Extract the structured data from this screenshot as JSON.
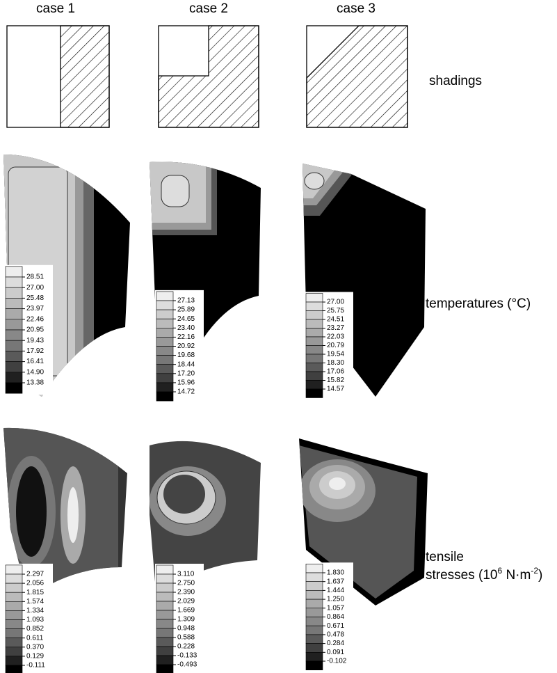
{
  "columns": [
    "case 1",
    "case 2",
    "case 3"
  ],
  "rows": {
    "shadings": "shadings",
    "temperatures": "temperatures (°C)",
    "stresses": {
      "line1": "tensile",
      "line2": [
        "stresses (10",
        "6",
        " N·m",
        "-2",
        ")"
      ]
    }
  },
  "temperature_legends": [
    [
      "28.51",
      "27.00",
      "25.48",
      "23.97",
      "22.46",
      "20.95",
      "19.43",
      "17.92",
      "16.41",
      "14.90",
      "13.38"
    ],
    [
      "27.13",
      "25.89",
      "24.65",
      "23.40",
      "22.16",
      "20.92",
      "19.68",
      "18.44",
      "17.20",
      "15.96",
      "14.72"
    ],
    [
      "27.00",
      "25.75",
      "24.51",
      "23.27",
      "22.03",
      "20.79",
      "19.54",
      "18.30",
      "17.06",
      "15.82",
      "14.57"
    ]
  ],
  "stress_legends": [
    [
      "2.297",
      "2.056",
      "1.815",
      "1.574",
      "1.334",
      "1.093",
      "0.852",
      "0.611",
      "0.370",
      "0.129",
      "-0.111"
    ],
    [
      "3.110",
      "2.750",
      "2.390",
      "2.029",
      "1.669",
      "1.309",
      "0.948",
      "0.588",
      "0.228",
      "-0.133",
      "-0.493"
    ],
    [
      "1.830",
      "1.637",
      "1.444",
      "1.250",
      "1.057",
      "0.864",
      "0.671",
      "0.478",
      "0.284",
      "0.091",
      "-0.102"
    ]
  ]
}
